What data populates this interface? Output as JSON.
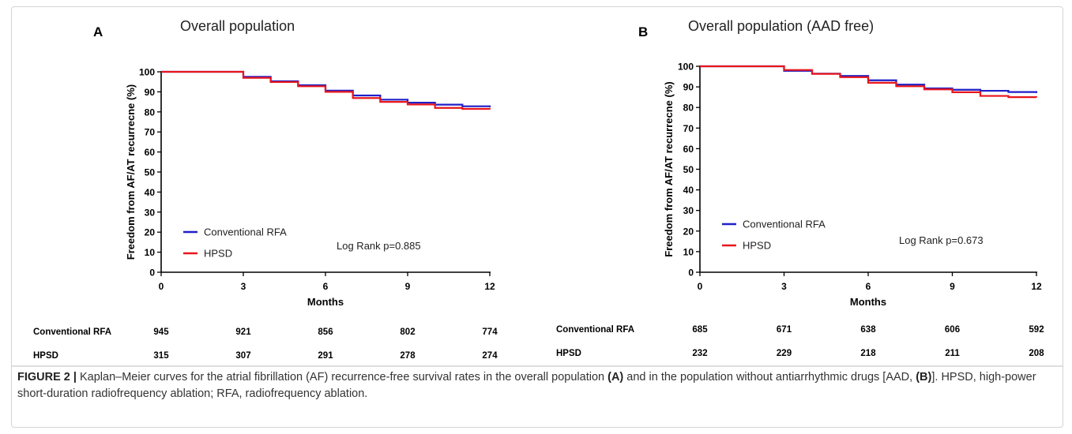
{
  "chart_data": [
    {
      "type": "line",
      "panel_letter": "A",
      "title": "Overall population",
      "xlabel": "Months",
      "ylabel": "Freedom from AF/AT recurrecne (%)",
      "xlim": [
        0,
        12
      ],
      "ylim": [
        0,
        100
      ],
      "xticks": [
        0,
        3,
        6,
        9,
        12
      ],
      "yticks": [
        0,
        10,
        20,
        30,
        40,
        50,
        60,
        70,
        80,
        90,
        100
      ],
      "step": true,
      "annotation": "Log Rank p=0.885",
      "legend_position": "bottom-left",
      "series": [
        {
          "name": "Conventional RFA",
          "color": "#1f1fc8",
          "x": [
            0,
            3,
            4,
            5,
            6,
            7,
            8,
            9,
            10,
            11,
            12
          ],
          "y": [
            100,
            97.5,
            95.3,
            93.3,
            90.6,
            88.2,
            86.1,
            84.6,
            83.6,
            82.8,
            82.3
          ]
        },
        {
          "name": "HPSD",
          "color": "#e8161b",
          "x": [
            0,
            3,
            4,
            5,
            6,
            7,
            8,
            9,
            10,
            11,
            12
          ],
          "y": [
            100,
            97.0,
            94.9,
            92.8,
            90.0,
            86.9,
            85.0,
            83.7,
            82.0,
            81.5,
            81.2
          ]
        }
      ],
      "risk_table": {
        "rows": [
          {
            "label": "Conventional RFA",
            "values": [
              "945",
              "921",
              "856",
              "802",
              "774"
            ]
          },
          {
            "label": "HPSD",
            "values": [
              "315",
              "307",
              "291",
              "278",
              "274"
            ]
          }
        ]
      }
    },
    {
      "type": "line",
      "panel_letter": "B",
      "title": "Overall population (AAD free)",
      "xlabel": "Months",
      "ylabel": "Freedom from AF/AT recurrecne (%)",
      "xlim": [
        0,
        12
      ],
      "ylim": [
        0,
        100
      ],
      "xticks": [
        0,
        3,
        6,
        9,
        12
      ],
      "yticks": [
        0,
        10,
        20,
        30,
        40,
        50,
        60,
        70,
        80,
        90,
        100
      ],
      "step": true,
      "annotation": "Log Rank p=0.673",
      "legend_position": "bottom-left",
      "series": [
        {
          "name": "Conventional RFA",
          "color": "#1f1fc8",
          "x": [
            0,
            3,
            4,
            5,
            6,
            7,
            8,
            9,
            10,
            11,
            12
          ],
          "y": [
            100,
            97.8,
            96.4,
            95.3,
            93.2,
            91.1,
            89.3,
            88.6,
            88.1,
            87.5,
            87.0
          ]
        },
        {
          "name": "HPSD",
          "color": "#e8161b",
          "x": [
            0,
            3,
            4,
            5,
            6,
            7,
            8,
            9,
            10,
            11,
            12
          ],
          "y": [
            100,
            98.2,
            96.3,
            94.7,
            92.0,
            90.3,
            88.8,
            87.4,
            85.6,
            85.0,
            84.9
          ]
        }
      ],
      "risk_table": {
        "rows": [
          {
            "label": "Conventional RFA",
            "values": [
              "685",
              "671",
              "638",
              "606",
              "592"
            ]
          },
          {
            "label": "HPSD",
            "values": [
              "232",
              "229",
              "218",
              "211",
              "208"
            ]
          }
        ]
      }
    }
  ],
  "caption": {
    "label": "FIGURE 2 |",
    "p1": " Kaplan–Meier curves for the atrial fibrillation (AF) recurrence-free survival rates in the overall population ",
    "ref_a": "(A)",
    "p2": " and in the population without antiarrhythmic drugs [AAD, ",
    "ref_b": "(B)",
    "p3": "]. HPSD, high-power short-duration radiofrequency ablation; RFA, radiofrequency ablation."
  }
}
